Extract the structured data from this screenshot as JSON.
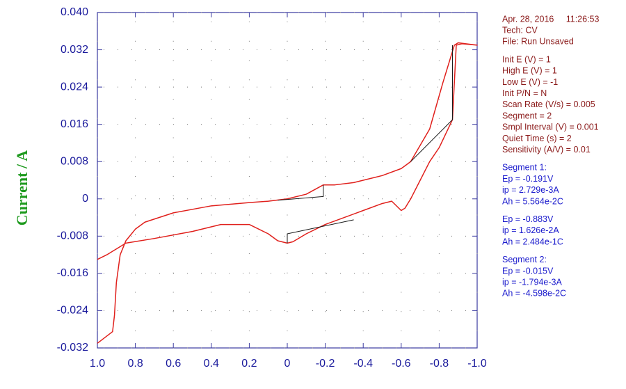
{
  "chart_data": {
    "type": "line",
    "y_label": "Current / A",
    "xlim": [
      1.0,
      -1.0
    ],
    "ylim": [
      -0.032,
      0.04
    ],
    "xticks": [
      {
        "value": 1.0,
        "label": "1.0"
      },
      0.8,
      0.6,
      0.4,
      0.2,
      0,
      -0.2,
      -0.4,
      -0.6,
      -0.8,
      {
        "value": -1.0,
        "label": "-1.0"
      }
    ],
    "yticks": [
      {
        "value": 0.04,
        "label": "0.040"
      },
      0.032,
      0.024,
      0.016,
      0.008,
      0,
      -0.008,
      -0.016,
      -0.024,
      -0.032
    ],
    "grid": true,
    "series": [
      {
        "color": "#e0201c",
        "x": [
          1.0,
          0.92,
          0.91,
          0.9,
          0.88,
          0.85,
          0.8,
          0.75,
          0.6,
          0.4,
          0.2,
          0.1,
          0.0,
          -0.1,
          -0.19,
          -0.25,
          -0.35,
          -0.5,
          -0.6,
          -0.65,
          -0.75,
          -0.82,
          -0.88,
          -0.9,
          -1.0,
          -0.92,
          -0.89,
          -0.87,
          -0.8,
          -0.75,
          -0.7,
          -0.65,
          -0.62,
          -0.6,
          -0.55,
          -0.5,
          -0.4,
          -0.3,
          -0.2,
          -0.1,
          -0.03,
          0.0,
          0.05,
          0.1,
          0.2,
          0.35,
          0.5,
          0.7,
          0.85,
          0.95,
          1.0
        ],
        "values": [
          -0.031,
          -0.0285,
          -0.025,
          -0.018,
          -0.012,
          -0.009,
          -0.0065,
          -0.005,
          -0.003,
          -0.0015,
          -0.0008,
          -0.0005,
          0.0,
          0.001,
          0.003,
          0.003,
          0.0035,
          0.005,
          0.0065,
          0.008,
          0.015,
          0.025,
          0.033,
          0.0335,
          0.033,
          0.0333,
          0.033,
          0.017,
          0.011,
          0.008,
          0.004,
          0.0,
          -0.002,
          -0.0025,
          -0.0005,
          -0.001,
          -0.0025,
          -0.004,
          -0.0055,
          -0.0075,
          -0.0092,
          -0.0095,
          -0.009,
          -0.0075,
          -0.0055,
          -0.0055,
          -0.007,
          -0.0085,
          -0.0095,
          -0.012,
          -0.013
        ]
      },
      {
        "color": "#1a1a1a",
        "x": [
          0.05,
          -0.19,
          -0.19,
          null,
          0.0,
          0.0,
          -0.35,
          null,
          -0.65,
          -0.87,
          -0.87
        ],
        "values": [
          -0.0003,
          0.0005,
          0.003,
          null,
          -0.0095,
          -0.0075,
          -0.0045,
          null,
          0.008,
          0.017,
          0.033
        ]
      }
    ],
    "info": [
      {
        "color": "#8b1a1a",
        "lines": [
          "Apr. 28, 2016     11:26:53",
          "Tech: CV",
          "File: Run Unsaved"
        ]
      },
      {
        "color": "#8b1a1a",
        "lines": [
          "Init E (V) = 1",
          "High E (V) = 1",
          "Low E (V) = -1",
          "Init P/N = N",
          "Scan Rate (V/s) = 0.005",
          "Segment = 2",
          "Smpl Interval (V) = 0.001",
          "Quiet Time (s) = 2",
          "Sensitivity (A/V) = 0.01"
        ]
      },
      {
        "color": "#1a1acd",
        "lines": [
          "Segment 1:",
          "Ep = -0.191V",
          "ip = 2.729e-3A",
          "Ah = 5.564e-2C"
        ]
      },
      {
        "color": "#1a1acd",
        "lines": [
          "Ep = -0.883V",
          "ip = 1.626e-2A",
          "Ah = 2.484e-1C"
        ]
      },
      {
        "color": "#1a1acd",
        "lines": [
          "Segment 2:",
          "Ep = -0.015V",
          "ip = -1.794e-3A",
          "Ah = -4.598e-2C"
        ]
      }
    ]
  }
}
